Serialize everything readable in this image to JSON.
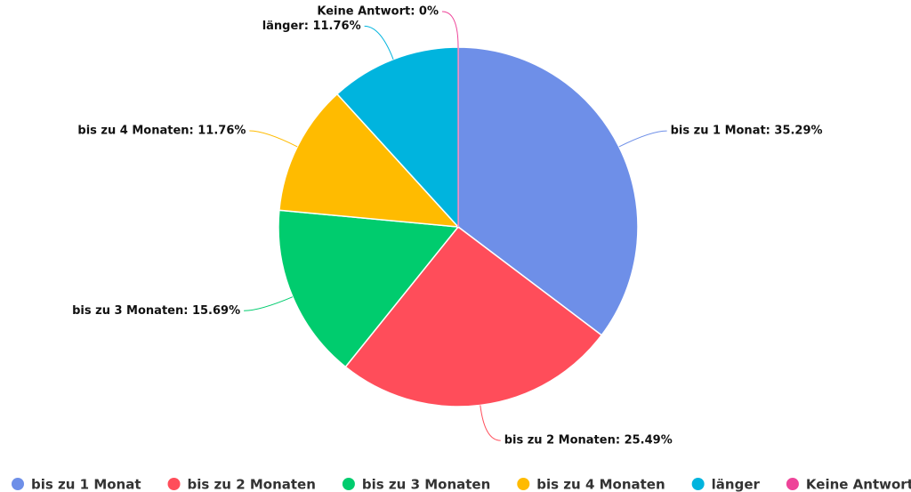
{
  "chart_data": {
    "type": "pie",
    "categories": [
      "bis zu 1 Monat",
      "bis zu 2 Monaten",
      "bis zu 3 Monaten",
      "bis zu 4 Monaten",
      "länger",
      "Keine Antwort"
    ],
    "values": [
      35.29,
      25.49,
      15.69,
      11.76,
      11.76,
      0
    ],
    "value_labels": [
      "bis zu 1 Monat: 35.29%",
      "bis zu 2 Monaten: 25.49%",
      "bis zu 3 Monaten: 15.69%",
      "bis zu 4 Monaten: 11.76%",
      "länger: 11.76%",
      "Keine Antwort: 0%"
    ],
    "colors": [
      "#6e8fe8",
      "#ff4d5a",
      "#00cc6e",
      "#ffbb00",
      "#00b4de",
      "#ee4499"
    ],
    "legend": "bottom"
  }
}
